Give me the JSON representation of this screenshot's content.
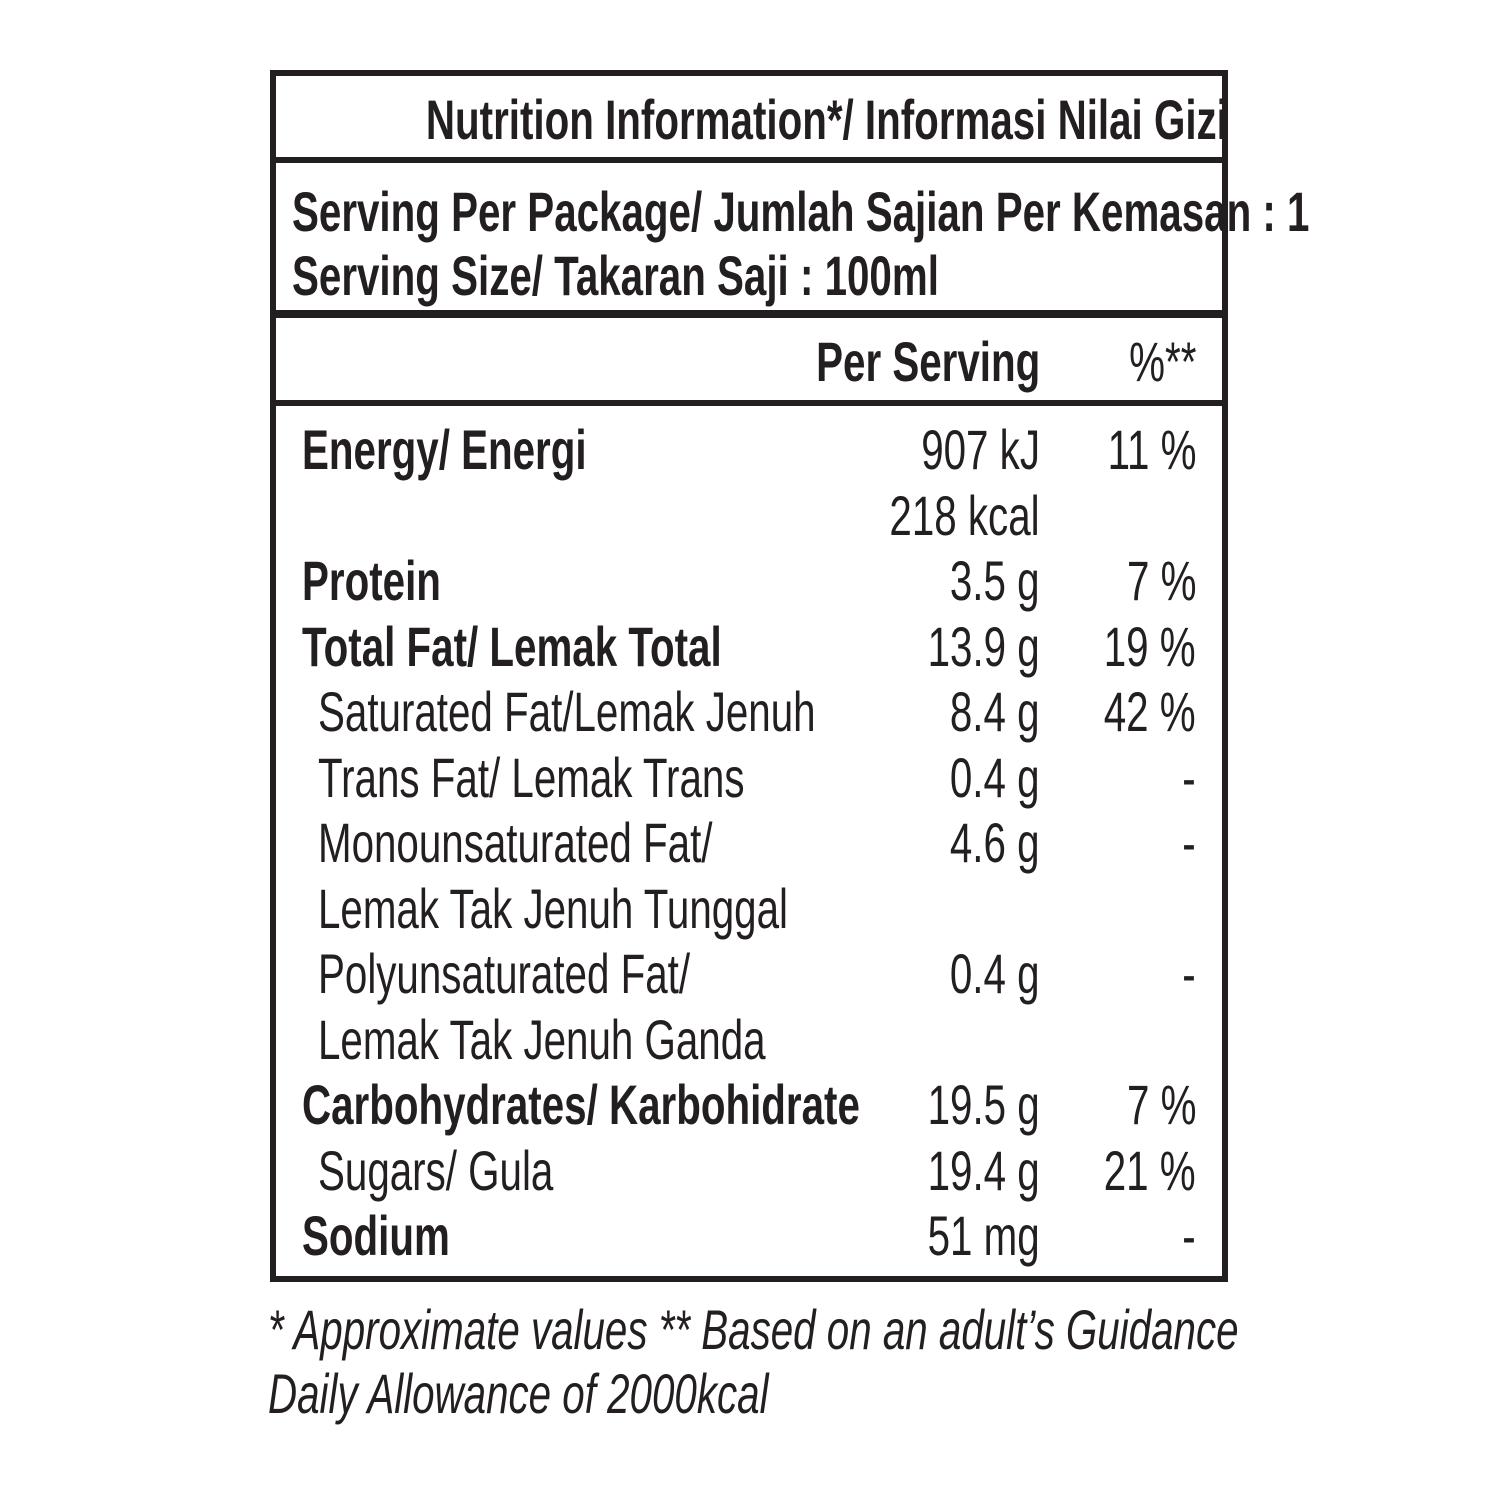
{
  "title": "Nutrition Information*/ Informasi Nilai Gizi",
  "serving": [
    "Serving Per Package/ Jumlah Sajian Per Kemasan : 1",
    "Serving Size/ Takaran Saji : 100ml"
  ],
  "header": {
    "per_serving": "Per Serving",
    "percent": "%**"
  },
  "rows": [
    {
      "label": [
        "Energy/ Energi"
      ],
      "amount": [
        "907 kJ",
        "218 kcal"
      ],
      "percent": "11 %",
      "bold": true
    },
    {
      "label": [
        "Protein"
      ],
      "amount": [
        "3.5 g"
      ],
      "percent": "7 %",
      "bold": true
    },
    {
      "label": [
        "Total Fat/ Lemak Total"
      ],
      "amount": [
        "13.9 g"
      ],
      "percent": "19 %",
      "bold": true
    },
    {
      "label": [
        "Saturated Fat/Lemak Jenuh"
      ],
      "amount": [
        "8.4 g"
      ],
      "percent": "42 %",
      "bold": false
    },
    {
      "label": [
        "Trans Fat/ Lemak Trans"
      ],
      "amount": [
        "0.4 g"
      ],
      "percent": "-",
      "bold": false
    },
    {
      "label": [
        "Monounsaturated Fat/",
        "Lemak Tak Jenuh Tunggal"
      ],
      "amount": [
        "4.6 g"
      ],
      "percent": "-",
      "bold": false
    },
    {
      "label": [
        "Polyunsaturated Fat/",
        "Lemak Tak Jenuh Ganda"
      ],
      "amount": [
        "0.4 g"
      ],
      "percent": "-",
      "bold": false
    },
    {
      "label": [
        "Carbohydrates/ Karbohidrate"
      ],
      "amount": [
        "19.5 g"
      ],
      "percent": "7 %",
      "bold": true
    },
    {
      "label": [
        "Sugars/ Gula"
      ],
      "amount": [
        "19.4 g"
      ],
      "percent": "21 %",
      "bold": false
    },
    {
      "label": [
        "Sodium"
      ],
      "amount": [
        "51 mg"
      ],
      "percent": "-",
      "bold": true
    }
  ],
  "footnote": [
    "* Approximate values  ** Based on an adult’s Guidance",
    "Daily Allowance of 2000kcal"
  ]
}
